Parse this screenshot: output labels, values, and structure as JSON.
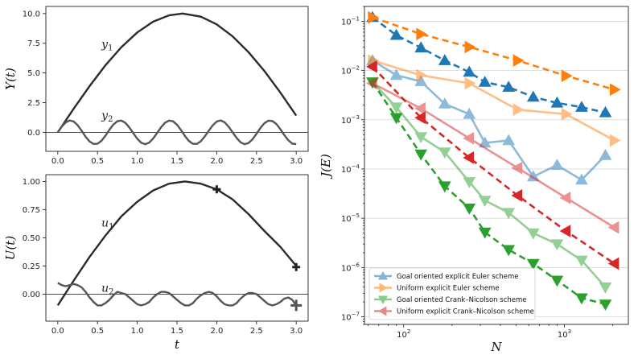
{
  "chart_data": [
    {
      "type": "line",
      "ylabel": "Y(t)",
      "xlim": [
        -0.15,
        3.15
      ],
      "ylim": [
        -1.6,
        10.6
      ],
      "xticks": [
        "0.0",
        "0.5",
        "1.0",
        "1.5",
        "2.0",
        "2.5",
        "3.0"
      ],
      "yticks": [
        "0.0",
        "2.5",
        "5.0",
        "7.5",
        "10.0"
      ],
      "hline": 0,
      "series": [
        {
          "name": "y1",
          "label_main": "y",
          "label_sub": "1",
          "label_at": [
            0.55,
            7.1
          ],
          "color": "#2b2b2b",
          "x": [
            0,
            0.2,
            0.4,
            0.6,
            0.8,
            1.0,
            1.2,
            1.4,
            1.57,
            1.8,
            2.0,
            2.2,
            2.4,
            2.6,
            2.8,
            3.0
          ],
          "y": [
            0,
            1.99,
            3.89,
            5.65,
            7.17,
            8.41,
            9.32,
            9.85,
            10.0,
            9.74,
            9.09,
            8.08,
            6.75,
            5.16,
            3.35,
            1.41
          ]
        },
        {
          "name": "y2",
          "label_main": "y",
          "label_sub": "2",
          "label_at": [
            0.55,
            1.1
          ],
          "color": "#555555",
          "x": [
            0,
            0.05,
            0.1,
            0.15,
            0.2,
            0.25,
            0.3,
            0.35,
            0.4,
            0.45,
            0.5,
            0.55,
            0.6,
            0.65,
            0.7,
            0.75,
            0.8,
            0.85,
            0.9,
            0.95,
            1.0,
            1.05,
            1.1,
            1.15,
            1.2,
            1.25,
            1.3,
            1.35,
            1.4,
            1.45,
            1.5,
            1.55,
            1.6,
            1.65,
            1.7,
            1.75,
            1.8,
            1.85,
            1.9,
            1.95,
            2.0,
            2.05,
            2.1,
            2.15,
            2.2,
            2.25,
            2.3,
            2.35,
            2.4,
            2.45,
            2.5,
            2.55,
            2.6,
            2.65,
            2.7,
            2.75,
            2.8,
            2.85,
            2.9,
            2.95,
            3.0
          ],
          "y": [
            0,
            0.48,
            0.84,
            1.0,
            0.91,
            0.6,
            0.13,
            -0.37,
            -0.77,
            -0.98,
            -0.96,
            -0.71,
            -0.28,
            0.22,
            0.66,
            0.94,
            0.99,
            0.8,
            0.41,
            -0.07,
            -0.54,
            -0.88,
            -1.0,
            -0.87,
            -0.52,
            -0.05,
            0.43,
            0.81,
            0.99,
            0.93,
            0.64,
            0.19,
            -0.31,
            -0.73,
            -0.97,
            -0.97,
            -0.75,
            -0.34,
            0.14,
            0.59,
            0.91,
            1.0,
            0.84,
            0.47,
            0.0,
            -0.47,
            -0.84,
            -1.0,
            -0.9,
            -0.59,
            -0.12,
            0.37,
            0.77,
            0.98,
            0.95,
            0.7,
            0.27,
            -0.23,
            -0.66,
            -0.95,
            -0.99
          ]
        }
      ]
    },
    {
      "type": "line",
      "ylabel": "U(t)",
      "xlabel": "t",
      "xlim": [
        -0.15,
        3.15
      ],
      "ylim": [
        -0.24,
        1.06
      ],
      "xticks": [
        "0.0",
        "0.5",
        "1.0",
        "1.5",
        "2.0",
        "2.5",
        "3.0"
      ],
      "yticks": [
        "0.00",
        "0.25",
        "0.50",
        "0.75",
        "1.00"
      ],
      "hline": 0,
      "markers": [
        {
          "x": 2.0,
          "y": 0.93
        },
        {
          "x": 3.0,
          "y": 0.24
        },
        {
          "x": 3.0,
          "y": -0.1
        }
      ],
      "series": [
        {
          "name": "u1",
          "label_main": "u",
          "label_sub": "1",
          "label_at": [
            0.55,
            0.6
          ],
          "color": "#2b2b2b",
          "x": [
            0,
            0.2,
            0.4,
            0.6,
            0.8,
            1.0,
            1.2,
            1.4,
            1.6,
            1.8,
            2.0,
            2.2,
            2.4,
            2.6,
            2.8,
            3.0
          ],
          "y": [
            -0.1,
            0.12,
            0.33,
            0.52,
            0.69,
            0.82,
            0.92,
            0.98,
            1.0,
            0.98,
            0.93,
            0.84,
            0.71,
            0.56,
            0.42,
            0.25
          ]
        },
        {
          "name": "u2",
          "label_main": "u",
          "label_sub": "2",
          "label_at": [
            0.55,
            0.02
          ],
          "color": "#555555",
          "x": [
            0,
            0.05,
            0.1,
            0.15,
            0.2,
            0.25,
            0.3,
            0.35,
            0.4,
            0.45,
            0.5,
            0.55,
            0.6,
            0.65,
            0.7,
            0.75,
            0.8,
            0.85,
            0.9,
            0.95,
            1.0,
            1.05,
            1.1,
            1.15,
            1.2,
            1.25,
            1.3,
            1.35,
            1.4,
            1.45,
            1.5,
            1.55,
            1.6,
            1.65,
            1.7,
            1.75,
            1.8,
            1.85,
            1.9,
            1.95,
            2.0,
            2.05,
            2.1,
            2.15,
            2.2,
            2.25,
            2.3,
            2.35,
            2.4,
            2.45,
            2.5,
            2.55,
            2.6,
            2.65,
            2.7,
            2.75,
            2.8,
            2.85,
            2.9,
            2.95,
            3.0
          ],
          "y": [
            0.1,
            0.08,
            0.07,
            0.08,
            0.09,
            0.08,
            0.06,
            0.02,
            -0.03,
            -0.07,
            -0.1,
            -0.1,
            -0.08,
            -0.05,
            -0.01,
            0.02,
            0.01,
            0.0,
            -0.03,
            -0.06,
            -0.09,
            -0.1,
            -0.09,
            -0.07,
            -0.03,
            0.0,
            0.02,
            0.02,
            0.01,
            -0.02,
            -0.05,
            -0.08,
            -0.1,
            -0.1,
            -0.08,
            -0.04,
            -0.01,
            0.01,
            0.02,
            0.01,
            -0.02,
            -0.06,
            -0.09,
            -0.1,
            -0.1,
            -0.08,
            -0.04,
            -0.01,
            0.01,
            0.01,
            0.0,
            -0.03,
            -0.06,
            -0.09,
            -0.1,
            -0.09,
            -0.07,
            -0.04,
            -0.03,
            -0.05,
            -0.1
          ]
        }
      ]
    },
    {
      "type": "line",
      "scale": "loglog",
      "xlabel": "N",
      "ylabel": "J(E)",
      "xlim": [
        57,
        2500
      ],
      "ylim": [
        7e-08,
        0.2
      ],
      "xticks": [
        {
          "v": 100,
          "m": "10",
          "e": "2"
        },
        {
          "v": 1000,
          "m": "10",
          "e": "3"
        }
      ],
      "yticks": [
        {
          "v": 1e-07,
          "m": "10",
          "e": "−7"
        },
        {
          "v": 1e-06,
          "m": "10",
          "e": "−6"
        },
        {
          "v": 1e-05,
          "m": "10",
          "e": "−5"
        },
        {
          "v": 0.0001,
          "m": "10",
          "e": "−4"
        },
        {
          "v": 0.001,
          "m": "10",
          "e": "−3"
        },
        {
          "v": 0.01,
          "m": "10",
          "e": "−2"
        },
        {
          "v": 0.1,
          "m": "10",
          "e": "−1"
        }
      ],
      "grid": "y",
      "legend": "lower-left",
      "series": [
        {
          "name": "Goal oriented explicit Euler scheme",
          "color": "#1f77b4",
          "marker": "triangle-up",
          "dash": false,
          "alpha": 0.5,
          "x": [
            64,
            90,
            128,
            180,
            256,
            320,
            450,
            640,
            900,
            1280,
            1800
          ],
          "y": [
            0.016,
            0.008,
            0.006,
            0.0021,
            0.0013,
            0.00034,
            0.00038,
            7e-05,
            0.00012,
            6e-05,
            0.00019
          ]
        },
        {
          "name": "Goal oriented explicit Euler scheme",
          "color": "#1f77b4",
          "marker": "triangle-up",
          "dash": true,
          "alpha": 1,
          "x": [
            64,
            90,
            128,
            180,
            256,
            320,
            450,
            640,
            900,
            1280,
            1800
          ],
          "y": [
            0.12,
            0.052,
            0.029,
            0.016,
            0.0093,
            0.0058,
            0.0046,
            0.0029,
            0.0022,
            0.0018,
            0.0014
          ]
        },
        {
          "name": "Uniform explicit Euler scheme",
          "color": "#ff7f0e",
          "marker": "triangle-right",
          "dash": false,
          "alpha": 0.5,
          "x": [
            64,
            128,
            256,
            512,
            1024,
            2048
          ],
          "y": [
            0.016,
            0.008,
            0.0055,
            0.0016,
            0.0013,
            0.00038
          ]
        },
        {
          "name": "Uniform explicit Euler scheme",
          "color": "#ff7f0e",
          "marker": "triangle-right",
          "dash": true,
          "alpha": 1,
          "x": [
            64,
            128,
            256,
            512,
            1024,
            2048
          ],
          "y": [
            0.12,
            0.055,
            0.03,
            0.016,
            0.0078,
            0.0041
          ]
        },
        {
          "name": "Goal oriented Crank–Nicolson scheme",
          "color": "#2ca02c",
          "marker": "triangle-down",
          "dash": false,
          "alpha": 0.5,
          "x": [
            64,
            90,
            128,
            180,
            256,
            320,
            450,
            640,
            900,
            1280,
            1800
          ],
          "y": [
            0.0058,
            0.0018,
            0.00045,
            0.00022,
            5.5e-05,
            2.3e-05,
            1.3e-05,
            5e-06,
            3e-06,
            1.4e-06,
            4e-07
          ]
        },
        {
          "name": "Goal oriented Crank–Nicolson scheme",
          "color": "#2ca02c",
          "marker": "triangle-down",
          "dash": true,
          "alpha": 1,
          "x": [
            64,
            90,
            128,
            180,
            256,
            320,
            450,
            640,
            900,
            1280,
            1800
          ],
          "y": [
            0.0058,
            0.0011,
            0.0002,
            4.5e-05,
            1.6e-05,
            5.2e-06,
            2.3e-06,
            1.2e-06,
            5.5e-07,
            2.4e-07,
            1.8e-07
          ]
        },
        {
          "name": "Uniform explicit Crank–Nicolson scheme",
          "color": "#d62728",
          "marker": "triangle-left",
          "dash": false,
          "alpha": 0.5,
          "x": [
            64,
            128,
            256,
            512,
            1024,
            2048
          ],
          "y": [
            0.0055,
            0.0017,
            0.00042,
            0.000105,
            2.6e-05,
            6.5e-06
          ]
        },
        {
          "name": "Uniform explicit Crank–Nicolson scheme",
          "color": "#d62728",
          "marker": "triangle-left",
          "dash": true,
          "alpha": 1,
          "x": [
            64,
            128,
            256,
            512,
            1024,
            2048
          ],
          "y": [
            0.012,
            0.0011,
            0.00017,
            2.9e-05,
            5.5e-06,
            1.2e-06
          ]
        }
      ],
      "legend_entries": [
        {
          "label": "Goal oriented explicit Euler scheme",
          "color": "#1f77b4",
          "marker": "triangle-up"
        },
        {
          "label": "Uniform explicit Euler scheme",
          "color": "#ff7f0e",
          "marker": "triangle-right"
        },
        {
          "label": "Goal oriented Crank–Nicolson scheme",
          "color": "#2ca02c",
          "marker": "triangle-down"
        },
        {
          "label": "Uniform explicit Crank–Nicolson scheme",
          "color": "#d62728",
          "marker": "triangle-left"
        }
      ]
    }
  ]
}
